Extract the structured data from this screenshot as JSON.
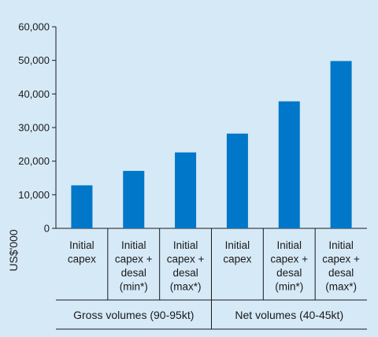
{
  "chart_data": {
    "type": "bar",
    "categories": [
      [
        "Initial",
        "capex"
      ],
      [
        "Initial",
        "capex +",
        "desal",
        "(min*)"
      ],
      [
        "Initial",
        "capex +",
        "desal",
        "(max*)"
      ],
      [
        "Initial",
        "capex"
      ],
      [
        "Initial",
        "capex +",
        "desal",
        "(min*)"
      ],
      [
        "Initial",
        "capex +",
        "desal",
        "(max*)"
      ]
    ],
    "groups": [
      {
        "label": "Gross volumes (90-95kt)",
        "span": [
          0,
          2
        ]
      },
      {
        "label": "Net volumes (40-45kt)",
        "span": [
          3,
          5
        ]
      }
    ],
    "values": [
      12800,
      17100,
      22600,
      28200,
      37800,
      49800
    ],
    "ylabel": "US$'000",
    "ylim": [
      0,
      60000
    ],
    "yticks": [
      "0",
      "10,000",
      "20,000",
      "30,000",
      "40,000",
      "50,000",
      "60,000"
    ],
    "ytick_values": [
      0,
      10000,
      20000,
      30000,
      40000,
      50000,
      60000
    ],
    "bar_color": "#0077c8",
    "grid": false
  }
}
